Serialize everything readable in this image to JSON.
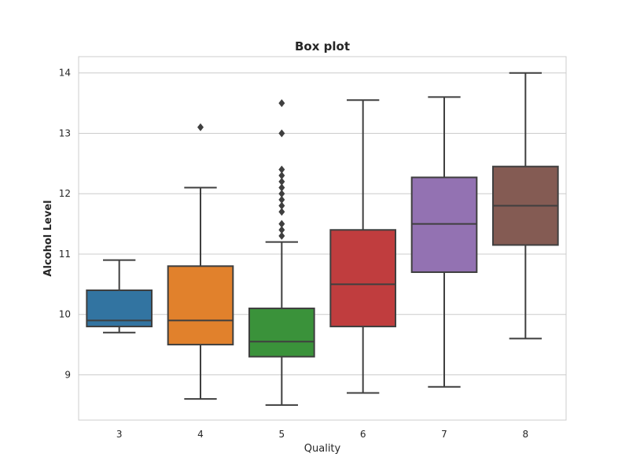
{
  "chart_data": {
    "type": "box",
    "title": "Box plot",
    "xlabel": "Quality",
    "ylabel": "Alcohol Level",
    "ylim": [
      8.25,
      14.27
    ],
    "yticks": [
      9,
      10,
      11,
      12,
      13,
      14
    ],
    "grid": "horizontal",
    "categories": [
      "3",
      "4",
      "5",
      "6",
      "7",
      "8"
    ],
    "boxes": [
      {
        "category": "3",
        "color": "#3274a1",
        "whisker_low": 9.7,
        "q1": 9.8,
        "median": 9.9,
        "q3": 10.4,
        "whisker_high": 10.9,
        "outliers": []
      },
      {
        "category": "4",
        "color": "#e1812c",
        "whisker_low": 8.6,
        "q1": 9.5,
        "median": 9.9,
        "q3": 10.8,
        "whisker_high": 12.1,
        "outliers": [
          13.1
        ]
      },
      {
        "category": "5",
        "color": "#3a923a",
        "whisker_low": 8.5,
        "q1": 9.3,
        "median": 9.55,
        "q3": 10.1,
        "whisker_high": 11.2,
        "outliers": [
          11.3,
          11.4,
          11.5,
          11.7,
          11.8,
          11.9,
          12.0,
          12.1,
          12.2,
          12.3,
          12.4,
          13.0,
          13.5
        ]
      },
      {
        "category": "6",
        "color": "#c03d3e",
        "whisker_low": 8.7,
        "q1": 9.8,
        "median": 10.5,
        "q3": 11.4,
        "whisker_high": 13.55,
        "outliers": []
      },
      {
        "category": "7",
        "color": "#9372b2",
        "whisker_low": 8.8,
        "q1": 10.7,
        "median": 11.5,
        "q3": 12.27,
        "whisker_high": 13.6,
        "outliers": []
      },
      {
        "category": "8",
        "color": "#845b53",
        "whisker_low": 9.6,
        "q1": 11.15,
        "median": 11.8,
        "q3": 12.45,
        "whisker_high": 14.0,
        "outliers": []
      }
    ]
  }
}
